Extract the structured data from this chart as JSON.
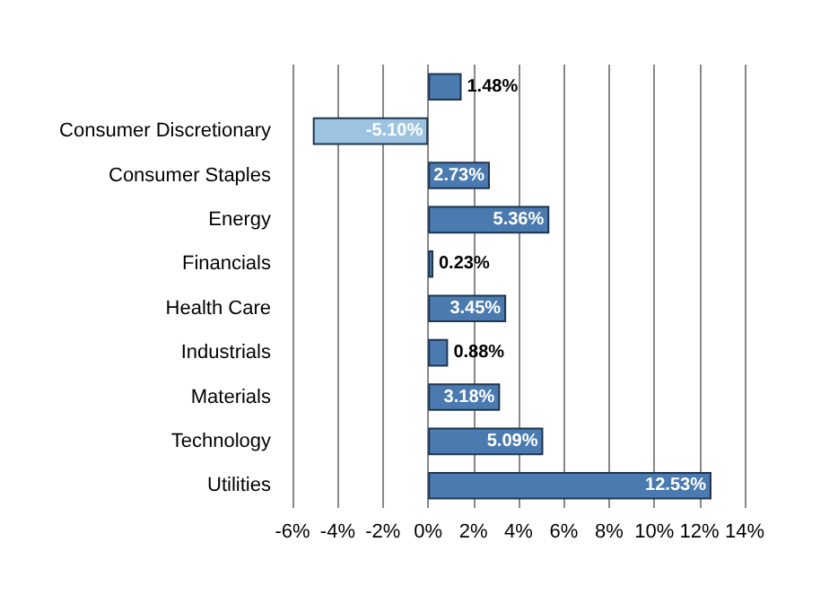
{
  "chart_data": {
    "type": "bar",
    "orientation": "horizontal",
    "categories": [
      null,
      "Consumer Discretionary",
      "Consumer Staples",
      "Energy",
      "Financials",
      "Health Care",
      "Industrials",
      "Materials",
      "Technology",
      "Utilities"
    ],
    "values": [
      1.48,
      -5.1,
      2.73,
      5.36,
      0.23,
      3.45,
      0.88,
      3.18,
      5.09,
      12.53
    ],
    "value_labels": [
      "1.48%",
      "-5.10%",
      "2.73%",
      "5.36%",
      "0.23%",
      "3.45%",
      "0.88%",
      "3.18%",
      "5.09%",
      "12.53%"
    ],
    "colors": [
      "#4a7ab0",
      "#9cc3e0",
      "#4a7ab0",
      "#4a7ab0",
      "#4a7ab0",
      "#4a7ab0",
      "#4a7ab0",
      "#4a7ab0",
      "#4a7ab0",
      "#4a7ab0"
    ],
    "xlim": [
      -6,
      14
    ],
    "xticks": [
      {
        "value": -6,
        "label": "-6%"
      },
      {
        "value": -4,
        "label": "-4%"
      },
      {
        "value": -2,
        "label": "-2%"
      },
      {
        "value": 0,
        "label": "0%"
      },
      {
        "value": 2,
        "label": "2%"
      },
      {
        "value": 4,
        "label": "4%"
      },
      {
        "value": 6,
        "label": "6%"
      },
      {
        "value": 8,
        "label": "8%"
      },
      {
        "value": 10,
        "label": "10%"
      },
      {
        "value": 12,
        "label": "12%"
      },
      {
        "value": 14,
        "label": "14%"
      }
    ],
    "grid": "x"
  }
}
